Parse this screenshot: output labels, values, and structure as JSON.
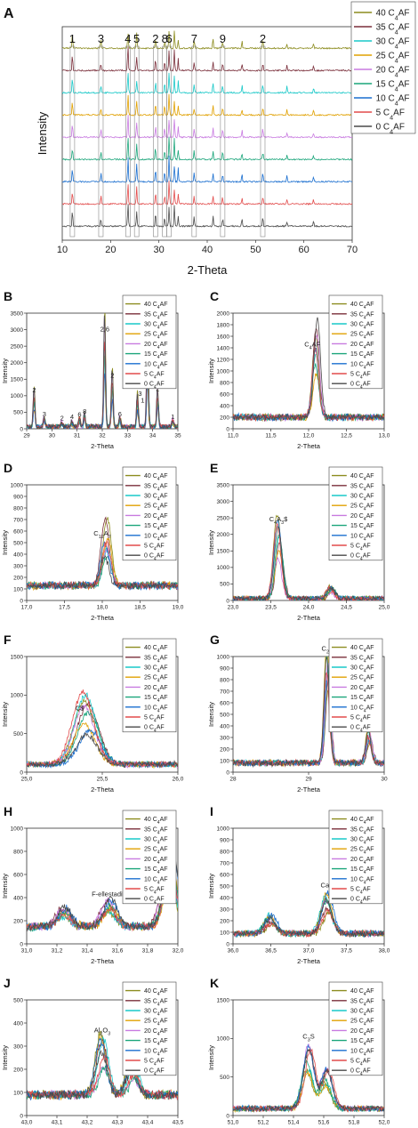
{
  "series_colors": [
    "#8c8c1f",
    "#7a2e3a",
    "#19c8c8",
    "#e0a000",
    "#c87ae0",
    "#1aa57a",
    "#1a6ecf",
    "#e24b4b",
    "#4a4a4a"
  ],
  "legend_base": [
    "40",
    "35",
    "30",
    "25",
    "20",
    "15",
    "10",
    "5",
    "0"
  ],
  "legend_sub": "4",
  "legend_prefix": "C",
  "legend_suffix": "AF",
  "chart_data": [
    {
      "id": "A",
      "type": "line",
      "panel_label": "A",
      "xlabel": "2-Theta",
      "ylabel": "Intensity",
      "xlim": [
        10,
        70
      ],
      "xticks": [
        "10",
        "20",
        "30",
        "40",
        "50",
        "60",
        "70"
      ],
      "stacked": true,
      "marker_labels": [
        {
          "text": "1",
          "x": 12.1
        },
        {
          "text": "3",
          "x": 18.0
        },
        {
          "text": "4",
          "x": 23.6
        },
        {
          "text": "5",
          "x": 25.4
        },
        {
          "text": "2",
          "x": 29.3
        },
        {
          "text": "8",
          "x": 31.2
        },
        {
          "text": "6",
          "x": 32.1
        },
        {
          "text": "7",
          "x": 37.3
        },
        {
          "text": "9",
          "x": 43.2
        },
        {
          "text": "2",
          "x": 51.5
        }
      ],
      "peaks": [
        [
          12.1,
          0.6
        ],
        [
          18.0,
          0.35
        ],
        [
          23.6,
          1.0
        ],
        [
          25.4,
          0.7
        ],
        [
          29.3,
          0.55
        ],
        [
          31.2,
          0.4
        ],
        [
          32.1,
          1.0
        ],
        [
          33.2,
          0.8
        ],
        [
          34.0,
          0.5
        ],
        [
          37.3,
          0.35
        ],
        [
          41.2,
          0.4
        ],
        [
          43.2,
          0.3
        ],
        [
          47.2,
          0.3
        ],
        [
          51.5,
          0.35
        ],
        [
          56.5,
          0.25
        ],
        [
          62.0,
          0.2
        ]
      ]
    },
    {
      "id": "B",
      "type": "line",
      "panel_label": "B",
      "xlabel": "2-Theta",
      "ylabel": "Intensity",
      "xlim": [
        29,
        35
      ],
      "ylim": [
        0,
        3500
      ],
      "xticks": [
        "29",
        "30",
        "31",
        "32",
        "33",
        "34",
        "35"
      ],
      "yticks": [
        "0",
        "500",
        "1000",
        "1500",
        "2000",
        "2500",
        "3000",
        "3500"
      ],
      "annotations": [
        {
          "text": "2",
          "x": 29.3,
          "y": 1100
        },
        {
          "text": "3",
          "x": 29.7,
          "y": 380
        },
        {
          "text": "2",
          "x": 30.4,
          "y": 250
        },
        {
          "text": "4",
          "x": 30.8,
          "y": 300
        },
        {
          "text": "6",
          "x": 31.1,
          "y": 370
        },
        {
          "text": "8",
          "x": 31.3,
          "y": 460
        },
        {
          "text": "2,6",
          "x": 32.1,
          "y": 2950
        },
        {
          "text": "2",
          "x": 32.4,
          "y": 1550
        },
        {
          "text": "6",
          "x": 32.7,
          "y": 380
        },
        {
          "text": "3",
          "x": 33.5,
          "y": 1000
        },
        {
          "text": "1",
          "x": 33.8,
          "y": 2600
        },
        {
          "text": "1",
          "x": 33.6,
          "y": 800
        },
        {
          "text": "2",
          "x": 34.2,
          "y": 1150
        },
        {
          "text": "1",
          "x": 34.8,
          "y": 290
        }
      ],
      "peaks": [
        [
          29.3,
          900
        ],
        [
          29.7,
          250
        ],
        [
          30.4,
          120
        ],
        [
          30.8,
          150
        ],
        [
          31.1,
          230
        ],
        [
          31.3,
          320
        ],
        [
          32.1,
          2700
        ],
        [
          32.4,
          1350
        ],
        [
          32.7,
          250
        ],
        [
          33.4,
          800
        ],
        [
          33.8,
          2300
        ],
        [
          34.2,
          900
        ],
        [
          34.8,
          170
        ]
      ],
      "baseline": 60
    },
    {
      "id": "C",
      "type": "line",
      "panel_label": "C",
      "xlabel": "2-Theta",
      "ylabel": "Intensity",
      "xlim": [
        11.0,
        13.0
      ],
      "ylim": [
        0,
        2000
      ],
      "xticks": [
        "11,0",
        "11,5",
        "12,0",
        "12,5",
        "13,0"
      ],
      "yticks": [
        "0",
        "200",
        "400",
        "600",
        "800",
        "1000",
        "1200",
        "1400",
        "1600",
        "1800",
        "2000"
      ],
      "annotations": [
        {
          "text": "C",
          "sub": "4",
          "suffix": "AF",
          "x": 12.05,
          "y": 1420
        }
      ],
      "peaks": [
        [
          12.1,
          1300
        ]
      ],
      "peak_width": 0.06,
      "baseline": 200
    },
    {
      "id": "D",
      "type": "line",
      "panel_label": "D",
      "xlabel": "2-Theta",
      "ylabel": "Intensity",
      "xlim": [
        17.0,
        19.0
      ],
      "ylim": [
        0,
        1000
      ],
      "xticks": [
        "17,0",
        "17,5",
        "18,0",
        "18,5",
        "19,0"
      ],
      "yticks": [
        "0",
        "100",
        "200",
        "300",
        "400",
        "500",
        "600",
        "700",
        "800",
        "900",
        "1000"
      ],
      "annotations": [
        {
          "text": "C",
          "sub": "12",
          "suffix": "A",
          "sub2": "7",
          "x": 18.0,
          "y": 560
        }
      ],
      "peaks": [
        [
          18.05,
          420
        ]
      ],
      "peak_width": 0.08,
      "baseline": 130
    },
    {
      "id": "E",
      "type": "line",
      "panel_label": "E",
      "xlabel": "2-Theta",
      "ylabel": "Intensity",
      "xlim": [
        23.0,
        25.0
      ],
      "ylim": [
        0,
        3500
      ],
      "xticks": [
        "23,0",
        "23,5",
        "24,0",
        "24,5",
        "25,0"
      ],
      "yticks": [
        "0",
        "500",
        "1000",
        "1500",
        "2000",
        "2500",
        "3000",
        "3500"
      ],
      "annotations": [
        {
          "text": "C",
          "sub": "4",
          "suffix": "A",
          "sub2": "3",
          "suffix2": "$",
          "x": 23.6,
          "y": 2400
        }
      ],
      "peaks": [
        [
          23.6,
          2050
        ],
        [
          24.3,
          300
        ]
      ],
      "peak_width": 0.07,
      "baseline": 60
    },
    {
      "id": "F",
      "type": "line",
      "panel_label": "F",
      "xlabel": "2-Theta",
      "ylabel": "Intensity",
      "xlim": [
        25.0,
        26.0
      ],
      "ylim": [
        0,
        1500
      ],
      "xticks": [
        "25,0",
        "25,5",
        "26,0"
      ],
      "yticks": [
        "0",
        "500",
        "1000",
        "1500"
      ],
      "annotations": [
        {
          "text": "C$",
          "x": 25.35,
          "y": 800
        }
      ],
      "peaks": [
        [
          25.4,
          650
        ]
      ],
      "peak_width": 0.1,
      "baseline": 100
    },
    {
      "id": "G",
      "type": "line",
      "panel_label": "G",
      "xlabel": "2-Theta",
      "ylabel": "Intensity",
      "xlim": [
        28,
        30
      ],
      "ylim": [
        0,
        1000
      ],
      "xticks": [
        "28",
        "29",
        "30"
      ],
      "yticks": [
        "0",
        "100",
        "200",
        "300",
        "400",
        "500",
        "600",
        "700",
        "800",
        "900",
        "1000"
      ],
      "annotations": [
        {
          "text": "C",
          "sub": "2",
          "suffix": "S",
          "x": 29.25,
          "y": 1050
        }
      ],
      "peaks": [
        [
          29.25,
          850
        ],
        [
          29.8,
          250
        ]
      ],
      "peak_width": 0.05,
      "baseline": 80
    },
    {
      "id": "H",
      "type": "line",
      "panel_label": "H",
      "xlabel": "2-Theta",
      "ylabel": "Intensity",
      "xlim": [
        31.0,
        32.0
      ],
      "ylim": [
        0,
        1000
      ],
      "xticks": [
        "31,0",
        "31,2",
        "31,4",
        "31,6",
        "31,8",
        "32,0"
      ],
      "yticks": [
        "0",
        "200",
        "400",
        "600",
        "800",
        "1000"
      ],
      "annotations": [
        {
          "text": "F-ellestadite",
          "x": 31.55,
          "y": 410
        }
      ],
      "peaks": [
        [
          31.25,
          120
        ],
        [
          31.55,
          180
        ],
        [
          31.95,
          550
        ]
      ],
      "peak_width": 0.06,
      "baseline": 150
    },
    {
      "id": "I",
      "type": "line",
      "panel_label": "I",
      "xlabel": "2-Theta",
      "ylabel": "Intensity",
      "xlim": [
        36.0,
        38.0
      ],
      "ylim": [
        0,
        1000
      ],
      "xticks": [
        "36,0",
        "36,5",
        "37,0",
        "37,5",
        "38,0"
      ],
      "yticks": [
        "0",
        "100",
        "200",
        "300",
        "400",
        "500",
        "600",
        "700",
        "800",
        "900",
        "1000"
      ],
      "annotations": [
        {
          "text": "CaO",
          "x": 37.25,
          "y": 490
        }
      ],
      "peaks": [
        [
          36.5,
          130
        ],
        [
          37.25,
          280
        ]
      ],
      "peak_width": 0.1,
      "baseline": 90
    },
    {
      "id": "J",
      "type": "line",
      "panel_label": "J",
      "xlabel": "2-Theta",
      "ylabel": "Intensity",
      "xlim": [
        43.0,
        43.5
      ],
      "ylim": [
        0,
        500
      ],
      "xticks": [
        "43,0",
        "43,1",
        "43,2",
        "43,3",
        "43,4",
        "43,5"
      ],
      "yticks": [
        "0",
        "100",
        "200",
        "300",
        "400",
        "500"
      ],
      "annotations": [
        {
          "text": "Al",
          "sub": "2",
          "suffix": "O",
          "sub2": "3",
          "x": 43.25,
          "y": 360
        }
      ],
      "peaks": [
        [
          43.25,
          200
        ],
        [
          43.35,
          110
        ]
      ],
      "peak_width": 0.025,
      "baseline": 90
    },
    {
      "id": "K",
      "type": "line",
      "panel_label": "K",
      "xlabel": "2-Theta",
      "ylabel": "Intensity",
      "xlim": [
        51.0,
        52.0
      ],
      "ylim": [
        0,
        1500
      ],
      "xticks": [
        "51,0",
        "51,2",
        "51,4",
        "51,6",
        "51,8",
        "52,0"
      ],
      "yticks": [
        "0",
        "500",
        "1000",
        "1500"
      ],
      "annotations": [
        {
          "text": "C",
          "sub": "3",
          "suffix": "S",
          "x": 51.5,
          "y": 1000
        }
      ],
      "peaks": [
        [
          51.5,
          700
        ],
        [
          51.62,
          450
        ]
      ],
      "peak_width": 0.05,
      "baseline": 90
    }
  ]
}
